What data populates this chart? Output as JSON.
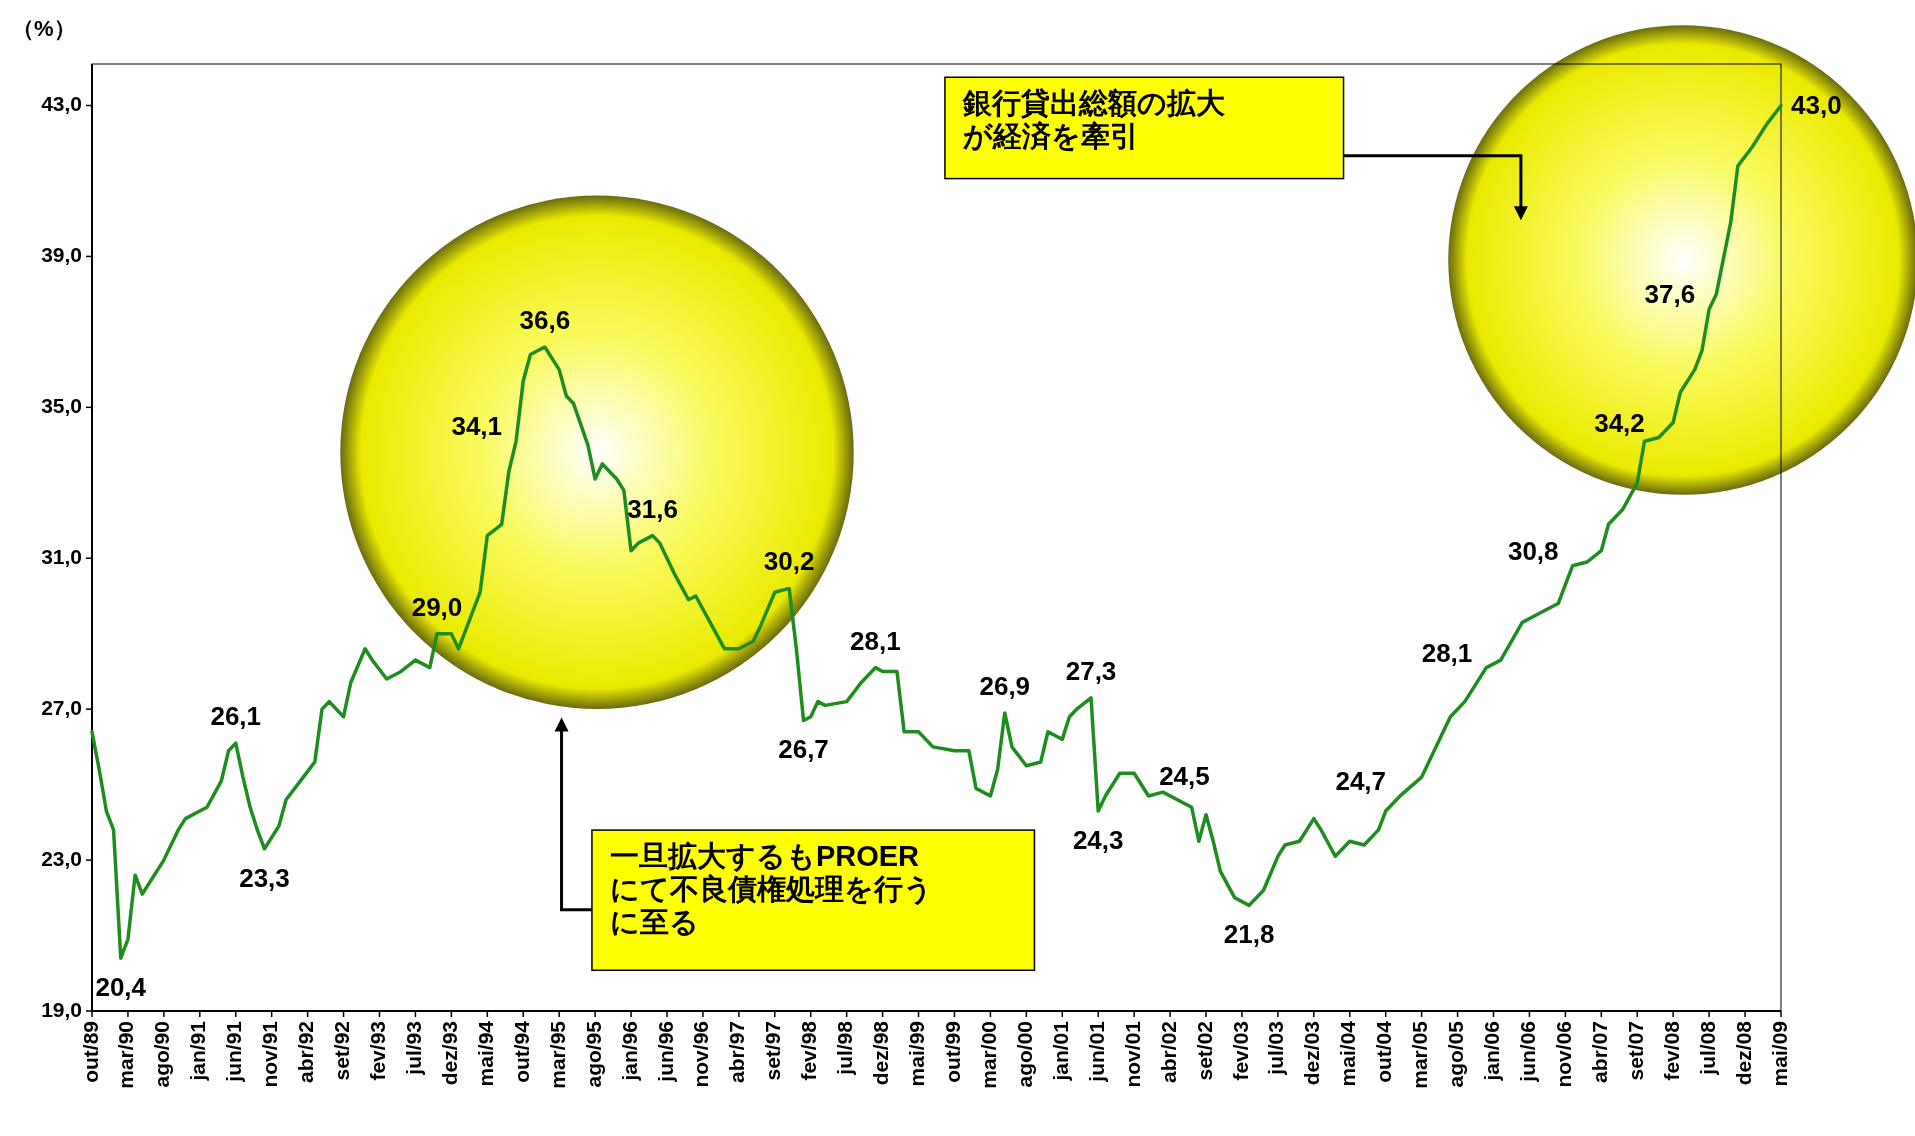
{
  "chart_data": {
    "type": "line",
    "ylabel": "（%）",
    "x": [
      "1989-10",
      "1989-11",
      "1989-12",
      "1990-01",
      "1990-02",
      "1990-03",
      "1990-04",
      "1990-05",
      "1990-07",
      "1990-08",
      "1990-10",
      "1990-11",
      "1991-01",
      "1991-02",
      "1991-04",
      "1991-05",
      "1991-06",
      "1991-07",
      "1991-08",
      "1991-09",
      "1991-10",
      "1991-12",
      "1992-01",
      "1992-03",
      "1992-05",
      "1992-06",
      "1992-07",
      "1992-09",
      "1992-10",
      "1992-12",
      "1993-01",
      "1993-03",
      "1993-05",
      "1993-07",
      "1993-09",
      "1993-10",
      "1993-12",
      "1994-01",
      "1994-04",
      "1994-05",
      "1994-07",
      "1994-08",
      "1994-09",
      "1994-10",
      "1994-11",
      "1994-12",
      "1995-01",
      "1995-03",
      "1995-04",
      "1995-05",
      "1995-07",
      "1995-08",
      "1995-09",
      "1995-11",
      "1995-12",
      "1996-01",
      "1996-02",
      "1996-04",
      "1996-05",
      "1996-07",
      "1996-09",
      "1996-10",
      "1996-12",
      "1997-02",
      "1997-04",
      "1997-06",
      "1997-07",
      "1997-09",
      "1997-11",
      "1997-12",
      "1998-01",
      "1998-02",
      "1998-03",
      "1998-04",
      "1998-07",
      "1998-09",
      "1998-11",
      "1998-12",
      "1999-02",
      "1999-03",
      "1999-05",
      "1999-07",
      "1999-10",
      "1999-12",
      "2000-01",
      "2000-03",
      "2000-04",
      "2000-05",
      "2000-06",
      "2000-08",
      "2000-10",
      "2000-11",
      "2001-01",
      "2001-02",
      "2001-03",
      "2001-05",
      "2001-06",
      "2001-07",
      "2001-09",
      "2001-11",
      "2002-01",
      "2002-03",
      "2002-06",
      "2002-07",
      "2002-08",
      "2002-09",
      "2002-10",
      "2002-11",
      "2003-01",
      "2003-02",
      "2003-03",
      "2003-05",
      "2003-07",
      "2003-08",
      "2003-10",
      "2003-12",
      "2004-01",
      "2004-03",
      "2004-05",
      "2004-07",
      "2004-09",
      "2004-10",
      "2004-12",
      "2005-03",
      "2005-06",
      "2005-07",
      "2005-09",
      "2005-12",
      "2006-02",
      "2006-05",
      "2006-08",
      "2006-10",
      "2006-11",
      "2006-12",
      "2007-02",
      "2007-04",
      "2007-05",
      "2007-07",
      "2007-09",
      "2007-10",
      "2007-12",
      "2008-02",
      "2008-03",
      "2008-05",
      "2008-06",
      "2008-07",
      "2008-08",
      "2008-10",
      "2008-11",
      "2009-01",
      "2009-03",
      "2009-05"
    ],
    "series": [
      {
        "color": "#1e8c1e",
        "values": [
          26.4,
          25.4,
          24.3,
          23.8,
          20.4,
          20.9,
          22.6,
          22.1,
          22.7,
          23.0,
          23.8,
          24.1,
          24.3,
          24.4,
          25.1,
          25.9,
          26.1,
          25.2,
          24.4,
          23.8,
          23.3,
          23.9,
          24.6,
          25.1,
          25.6,
          27.0,
          27.2,
          26.8,
          27.7,
          28.6,
          28.3,
          27.8,
          28.0,
          28.3,
          28.1,
          29.0,
          29.0,
          28.6,
          30.1,
          31.6,
          31.9,
          33.3,
          34.1,
          35.7,
          36.4,
          36.5,
          36.6,
          36.0,
          35.3,
          35.1,
          34.0,
          33.1,
          33.5,
          33.1,
          32.8,
          31.2,
          31.4,
          31.6,
          31.4,
          30.6,
          29.9,
          30.0,
          29.3,
          28.6,
          28.6,
          28.8,
          29.2,
          30.1,
          30.2,
          28.6,
          26.7,
          26.8,
          27.2,
          27.1,
          27.2,
          27.7,
          28.1,
          28.0,
          28.0,
          26.4,
          26.4,
          26.0,
          25.9,
          25.9,
          24.9,
          24.7,
          25.4,
          26.9,
          26.0,
          25.5,
          25.6,
          26.4,
          26.2,
          26.8,
          27.0,
          27.3,
          24.3,
          24.7,
          25.3,
          25.3,
          24.7,
          24.8,
          24.5,
          24.4,
          23.5,
          24.2,
          23.5,
          22.7,
          22.0,
          21.9,
          21.8,
          22.2,
          23.1,
          23.4,
          23.5,
          24.1,
          23.8,
          23.1,
          23.5,
          23.4,
          23.8,
          24.3,
          24.7,
          25.2,
          26.4,
          26.8,
          27.2,
          28.1,
          28.3,
          29.3,
          29.6,
          29.8,
          30.3,
          30.8,
          30.9,
          31.2,
          31.9,
          32.3,
          33.0,
          34.1,
          34.2,
          34.6,
          35.4,
          36.0,
          36.5,
          37.6,
          38.0,
          39.9,
          41.4,
          41.9,
          42.5,
          43.0
        ]
      }
    ],
    "xlim": [
      "1989-10",
      "2009-05"
    ],
    "xticks": [
      {
        "value": "1989-10",
        "label": "out/89"
      },
      {
        "value": "1990-03",
        "label": "mar/90"
      },
      {
        "value": "1990-08",
        "label": "ago/90"
      },
      {
        "value": "1991-01",
        "label": "jan/91"
      },
      {
        "value": "1991-06",
        "label": "jun/91"
      },
      {
        "value": "1991-11",
        "label": "nov/91"
      },
      {
        "value": "1992-04",
        "label": "abr/92"
      },
      {
        "value": "1992-09",
        "label": "set/92"
      },
      {
        "value": "1993-02",
        "label": "fev/93"
      },
      {
        "value": "1993-07",
        "label": "jul/93"
      },
      {
        "value": "1993-12",
        "label": "dez/93"
      },
      {
        "value": "1994-05",
        "label": "mai/94"
      },
      {
        "value": "1994-10",
        "label": "out/94"
      },
      {
        "value": "1995-03",
        "label": "mar/95"
      },
      {
        "value": "1995-08",
        "label": "ago/95"
      },
      {
        "value": "1996-01",
        "label": "jan/96"
      },
      {
        "value": "1996-06",
        "label": "jun/96"
      },
      {
        "value": "1996-11",
        "label": "nov/96"
      },
      {
        "value": "1997-04",
        "label": "abr/97"
      },
      {
        "value": "1997-09",
        "label": "set/97"
      },
      {
        "value": "1998-02",
        "label": "fev/98"
      },
      {
        "value": "1998-07",
        "label": "jul/98"
      },
      {
        "value": "1998-12",
        "label": "dez/98"
      },
      {
        "value": "1999-05",
        "label": "mai/99"
      },
      {
        "value": "1999-10",
        "label": "out/99"
      },
      {
        "value": "2000-03",
        "label": "mar/00"
      },
      {
        "value": "2000-08",
        "label": "ago/00"
      },
      {
        "value": "2001-01",
        "label": "jan/01"
      },
      {
        "value": "2001-06",
        "label": "jun/01"
      },
      {
        "value": "2001-11",
        "label": "nov/01"
      },
      {
        "value": "2002-04",
        "label": "abr/02"
      },
      {
        "value": "2002-09",
        "label": "set/02"
      },
      {
        "value": "2003-02",
        "label": "fev/03"
      },
      {
        "value": "2003-07",
        "label": "jul/03"
      },
      {
        "value": "2003-12",
        "label": "dez/03"
      },
      {
        "value": "2004-05",
        "label": "mai/04"
      },
      {
        "value": "2004-10",
        "label": "out/04"
      },
      {
        "value": "2005-03",
        "label": "mar/05"
      },
      {
        "value": "2005-08",
        "label": "ago/05"
      },
      {
        "value": "2006-01",
        "label": "jan/06"
      },
      {
        "value": "2006-06",
        "label": "jun/06"
      },
      {
        "value": "2006-11",
        "label": "nov/06"
      },
      {
        "value": "2007-04",
        "label": "abr/07"
      },
      {
        "value": "2007-09",
        "label": "set/07"
      },
      {
        "value": "2008-02",
        "label": "fev/08"
      },
      {
        "value": "2008-07",
        "label": "jul/08"
      },
      {
        "value": "2008-12",
        "label": "dez/08"
      },
      {
        "value": "2009-05",
        "label": "mai/09"
      }
    ],
    "ylim": [
      19,
      44.1
    ],
    "yticks": [
      {
        "value": 19,
        "label": "19,0"
      },
      {
        "value": 23,
        "label": "23,0"
      },
      {
        "value": 27,
        "label": "27,0"
      },
      {
        "value": 31,
        "label": "31,0"
      },
      {
        "value": 35,
        "label": "35,0"
      },
      {
        "value": 39,
        "label": "39,0"
      },
      {
        "value": 43,
        "label": "43,0"
      }
    ],
    "annotations": [
      "銀行貸出総額の拡大が経済を牽引",
      "一旦拡大するもPROERにて不良債権処理を行うに至る",
      {
        "text": "20,4",
        "x": "1990-02",
        "y": 20.4
      },
      {
        "text": "26,1",
        "x": "1991-06",
        "y": 26.1
      },
      {
        "text": "23,3",
        "x": "1991-10",
        "y": 23.3
      },
      {
        "text": "29,0",
        "x": "1993-10",
        "y": 29.0
      },
      {
        "text": "34,1",
        "x": "1994-09",
        "y": 34.1
      },
      {
        "text": "36,6",
        "x": "1995-01",
        "y": 36.6
      },
      {
        "text": "31,6",
        "x": "1996-04",
        "y": 31.6
      },
      {
        "text": "30,2",
        "x": "1997-11",
        "y": 30.2
      },
      {
        "text": "26,7",
        "x": "1998-01",
        "y": 26.7
      },
      {
        "text": "28,1",
        "x": "1998-11",
        "y": 28.1
      },
      {
        "text": "26,9",
        "x": "2000-05",
        "y": 26.9
      },
      {
        "text": "27,3",
        "x": "2001-05",
        "y": 27.3
      },
      {
        "text": "24,3",
        "x": "2001-06",
        "y": 24.3
      },
      {
        "text": "24,5",
        "x": "2002-06",
        "y": 24.5
      },
      {
        "text": "21,8",
        "x": "2003-03",
        "y": 21.8
      },
      {
        "text": "24,7",
        "x": "2004-12",
        "y": 24.7
      },
      {
        "text": "28,1",
        "x": "2005-12",
        "y": 28.1
      },
      {
        "text": "30,8",
        "x": "2006-12",
        "y": 30.8
      },
      {
        "text": "34,2",
        "x": "2007-12",
        "y": 34.2
      },
      {
        "text": "37,6",
        "x": "2008-07",
        "y": 37.6
      },
      {
        "text": "43,0",
        "x": "2009-05",
        "y": 43.0
      }
    ]
  }
}
